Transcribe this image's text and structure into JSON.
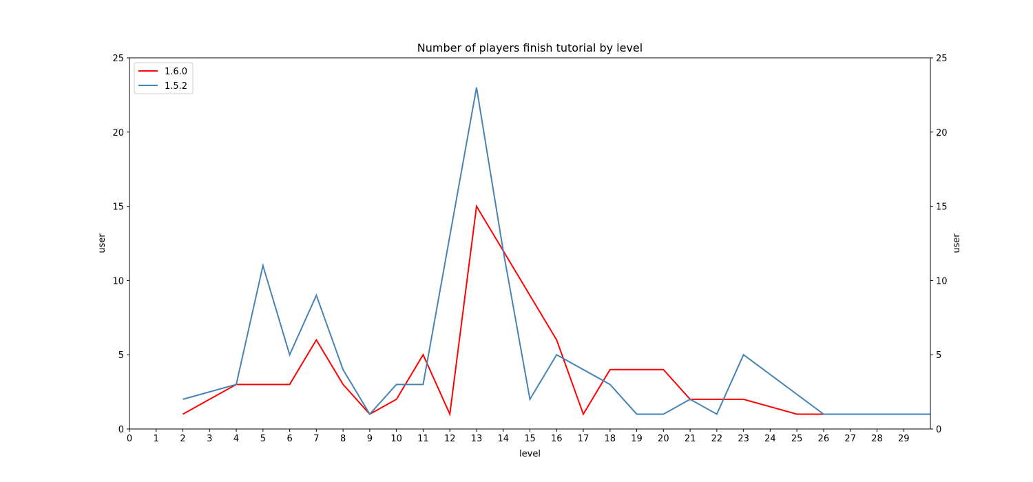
{
  "chart_data": {
    "type": "line",
    "title": "Number of players finish tutorial by level",
    "xlabel": "level",
    "ylabel": "user",
    "ylabel_right": "user",
    "xlim": [
      0,
      30
    ],
    "ylim": [
      0,
      25
    ],
    "x_ticks": [
      "0",
      "1",
      "2",
      "3",
      "4",
      "5",
      "6",
      "7",
      "8",
      "9",
      "10",
      "11",
      "12",
      "13",
      "14",
      "15",
      "16",
      "17",
      "18",
      "19",
      "20",
      "21",
      "22",
      "23",
      "24",
      "25",
      "26",
      "27",
      "28",
      "29"
    ],
    "y_ticks": [
      "0",
      "5",
      "10",
      "15",
      "20",
      "25"
    ],
    "legend_position": "top-left",
    "grid": false,
    "series": [
      {
        "name": "1.6.0",
        "color": "#ff0000",
        "x": [
          2,
          3,
          4,
          5,
          6,
          7,
          8,
          9,
          10,
          11,
          12,
          13,
          14,
          15,
          16,
          17,
          18,
          19,
          20,
          21,
          22,
          23,
          24,
          25,
          26,
          27,
          28,
          29,
          30
        ],
        "y": [
          1,
          2,
          3,
          3,
          3,
          6,
          3,
          1,
          2,
          5,
          1,
          15,
          12,
          9,
          6,
          1,
          4,
          4,
          4,
          2,
          2,
          2,
          1.5,
          1,
          1,
          1,
          1,
          1,
          1
        ]
      },
      {
        "name": "1.5.2",
        "color": "#4682b4",
        "x": [
          2,
          4,
          5,
          6,
          7,
          8,
          9,
          10,
          11,
          12,
          13,
          14,
          15,
          16,
          18,
          19,
          20,
          21,
          22,
          23,
          26,
          30
        ],
        "y": [
          2,
          3,
          11,
          5,
          9,
          4,
          1,
          3,
          3,
          13,
          23,
          12,
          2,
          5,
          3,
          1,
          1,
          2,
          1,
          5,
          1,
          1
        ]
      }
    ]
  }
}
